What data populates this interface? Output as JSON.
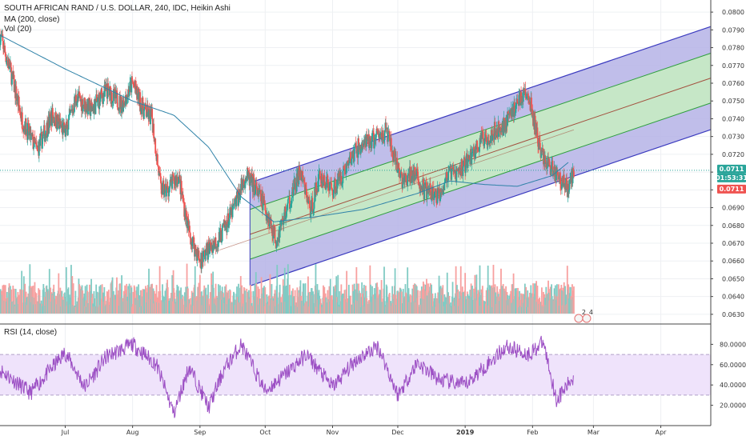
{
  "legend": {
    "title": "SOUTH AFRICAN RAND / U.S. DOLLAR, 240, IDC, Heikin Ashi",
    "ma": "MA (200, close)",
    "vol": "Vol (20)",
    "rsi": "RSI (14, close)"
  },
  "price_tags": {
    "last": "0.0711",
    "countdown": "01:53:31",
    "close": "0.0711"
  },
  "event_badges": [
    "2",
    "4"
  ],
  "colors": {
    "up": "#26a69a",
    "down": "#ef5350",
    "up_vol": "#80cbc4",
    "down_vol": "#f7a09f",
    "ma": "#2f82a8",
    "channel_outer": "#3b3bbf",
    "channel_outer_fill": "#b5b3e6",
    "channel_inner": "#2e9e3e",
    "channel_inner_fill": "#c7ebc3",
    "channel_mid": "#a3513f",
    "rsi": "#9c4fc4",
    "rsi_band": "#efe3fb",
    "last_price": "#2aa59a",
    "close_price": "#ef5350",
    "grid": "#eef0f3"
  },
  "chart_data": {
    "type": "candlestick",
    "title": "SOUTH AFRICAN RAND / U.S. DOLLAR, 240, IDC, Heikin Ashi",
    "price_axis": {
      "ticks": [
        "0.0800",
        "0.0790",
        "0.0780",
        "0.0770",
        "0.0760",
        "0.0750",
        "0.0740",
        "0.0730",
        "0.0720",
        "0.0710",
        "0.0700",
        "0.0690",
        "0.0680",
        "0.0670",
        "0.0660",
        "0.0650",
        "0.0640",
        "0.0630"
      ],
      "range": [
        0.0625,
        0.0805
      ]
    },
    "rsi_axis": {
      "ticks": [
        "80.0000",
        "60.0000",
        "40.0000",
        "20.0000"
      ],
      "range": [
        0,
        100
      ],
      "band": [
        30,
        70
      ]
    },
    "time_axis": {
      "ticks": [
        "Jul",
        "Aug",
        "Sep",
        "Oct",
        "Nov",
        "Dec",
        "2019",
        "Feb",
        "Mar",
        "Apr"
      ]
    },
    "price_path": {
      "dates": [
        "2018-06-01",
        "2018-06-06",
        "2018-06-11",
        "2018-06-18",
        "2018-06-25",
        "2018-07-01",
        "2018-07-06",
        "2018-07-13",
        "2018-07-20",
        "2018-07-27",
        "2018-08-01",
        "2018-08-06",
        "2018-08-10",
        "2018-08-14",
        "2018-08-17",
        "2018-08-22",
        "2018-08-27",
        "2018-09-01",
        "2018-09-05",
        "2018-09-10",
        "2018-09-16",
        "2018-09-22",
        "2018-09-26",
        "2018-10-01",
        "2018-10-06",
        "2018-10-12",
        "2018-10-17",
        "2018-10-22",
        "2018-10-26",
        "2018-11-01",
        "2018-11-06",
        "2018-11-12",
        "2018-11-19",
        "2018-11-26",
        "2018-11-30",
        "2018-12-04",
        "2018-12-08",
        "2018-12-13",
        "2018-12-19",
        "2018-12-24",
        "2018-12-29",
        "2019-01-03",
        "2019-01-08",
        "2019-01-13",
        "2019-01-18",
        "2019-01-23",
        "2019-01-28",
        "2019-01-31",
        "2019-02-05",
        "2019-02-10",
        "2019-02-14",
        "2019-02-17",
        "2019-02-20"
      ],
      "values": [
        0.0787,
        0.0766,
        0.074,
        0.0722,
        0.0742,
        0.0732,
        0.0752,
        0.0745,
        0.0756,
        0.0748,
        0.076,
        0.0745,
        0.074,
        0.07,
        0.07,
        0.0708,
        0.0676,
        0.066,
        0.0667,
        0.0673,
        0.0688,
        0.0708,
        0.0702,
        0.069,
        0.0672,
        0.0693,
        0.071,
        0.0688,
        0.0708,
        0.07,
        0.071,
        0.0723,
        0.0728,
        0.0733,
        0.0714,
        0.0704,
        0.071,
        0.07,
        0.0696,
        0.0708,
        0.071,
        0.0718,
        0.0727,
        0.0732,
        0.0735,
        0.0745,
        0.0755,
        0.0748,
        0.072,
        0.0712,
        0.0706,
        0.0701,
        0.0711
      ]
    },
    "ma200": {
      "dates": [
        "2018-06-01",
        "2018-07-01",
        "2018-08-01",
        "2018-08-20",
        "2018-09-05",
        "2018-09-20",
        "2018-10-05",
        "2018-10-25",
        "2018-11-15",
        "2018-12-10",
        "2018-12-25",
        "2019-01-10",
        "2019-01-25",
        "2019-02-10",
        "2019-02-18"
      ],
      "values": [
        0.0787,
        0.0768,
        0.075,
        0.0742,
        0.0724,
        0.0696,
        0.0682,
        0.0685,
        0.0689,
        0.0698,
        0.0705,
        0.0703,
        0.0702,
        0.0708,
        0.0716
      ]
    },
    "regression_channel": {
      "start": "2018-09-24",
      "end": "2019-04-05",
      "center_start": 0.0675,
      "center_end": 0.0755,
      "inner_band_offset": 0.0014,
      "outer_band_offset": 0.0029,
      "drawn_center_until": "2019-02-20"
    },
    "last_price": 0.0711,
    "rsi_path": {
      "dates": [
        "2018-06-01",
        "2018-06-15",
        "2018-07-01",
        "2018-07-10",
        "2018-07-20",
        "2018-08-01",
        "2018-08-12",
        "2018-08-20",
        "2018-08-27",
        "2018-09-05",
        "2018-09-12",
        "2018-09-20",
        "2018-10-01",
        "2018-10-10",
        "2018-10-20",
        "2018-11-01",
        "2018-11-12",
        "2018-11-22",
        "2018-12-01",
        "2018-12-10",
        "2018-12-20",
        "2019-01-01",
        "2019-01-10",
        "2019-01-20",
        "2019-01-30",
        "2019-02-06",
        "2019-02-12",
        "2019-02-20"
      ],
      "values": [
        55,
        32,
        72,
        38,
        68,
        80,
        60,
        12,
        58,
        18,
        55,
        80,
        34,
        50,
        70,
        38,
        65,
        78,
        30,
        62,
        45,
        40,
        58,
        78,
        70,
        82,
        25,
        48
      ]
    }
  }
}
